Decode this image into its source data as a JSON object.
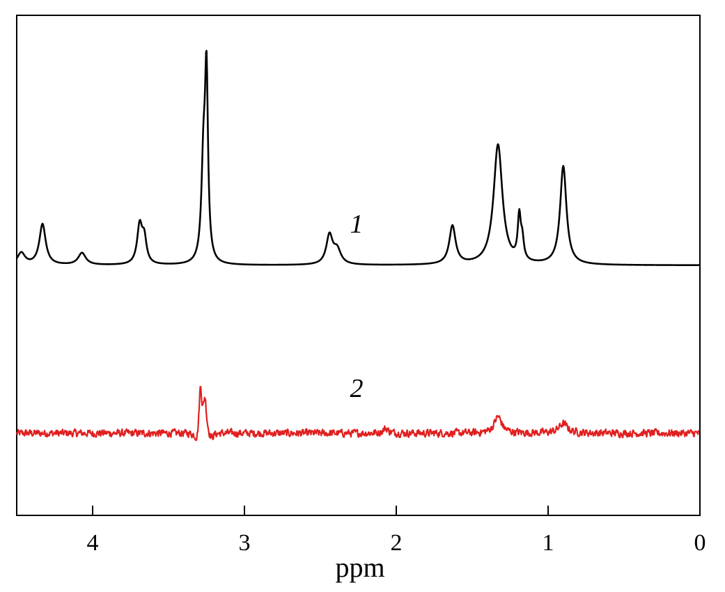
{
  "chart_data": {
    "type": "line",
    "title": "",
    "xlabel": "ppm",
    "ylabel": "",
    "xlim": [
      4.5,
      0
    ],
    "x_reversed": true,
    "grid": false,
    "x_ticks": [
      4,
      3,
      2,
      1,
      0
    ],
    "x_tick_labels": [
      "4",
      "3",
      "2",
      "1",
      "0"
    ],
    "series": [
      {
        "label": "1",
        "color": "#000000",
        "noise": 0,
        "baseline": 0,
        "peaks": [
          {
            "ppm": 4.47,
            "height": 0.05,
            "width": 0.03
          },
          {
            "ppm": 4.33,
            "height": 0.17,
            "width": 0.025
          },
          {
            "ppm": 4.07,
            "height": 0.05,
            "width": 0.03
          },
          {
            "ppm": 3.69,
            "height": 0.16,
            "width": 0.02
          },
          {
            "ppm": 3.66,
            "height": 0.1,
            "width": 0.018
          },
          {
            "ppm": 3.27,
            "height": 0.4,
            "width": 0.016
          },
          {
            "ppm": 3.25,
            "height": 0.74,
            "width": 0.012
          },
          {
            "ppm": 2.44,
            "height": 0.12,
            "width": 0.025
          },
          {
            "ppm": 2.39,
            "height": 0.06,
            "width": 0.03
          },
          {
            "ppm": 1.63,
            "height": 0.16,
            "width": 0.025
          },
          {
            "ppm": 1.33,
            "height": 0.5,
            "width": 0.035
          },
          {
            "ppm": 1.19,
            "height": 0.18,
            "width": 0.012
          },
          {
            "ppm": 1.17,
            "height": 0.08,
            "width": 0.012
          },
          {
            "ppm": 0.9,
            "height": 0.41,
            "width": 0.025
          }
        ]
      },
      {
        "label": "2",
        "color": "#e02020",
        "noise": 0.028,
        "baseline": 0,
        "peaks": [
          {
            "ppm": 3.29,
            "height": 0.42,
            "width": 0.012
          },
          {
            "ppm": 3.26,
            "height": 0.28,
            "width": 0.012
          },
          {
            "ppm": 3.31,
            "height": -0.12,
            "width": 0.02
          },
          {
            "ppm": 3.22,
            "height": -0.06,
            "width": 0.02
          },
          {
            "ppm": 1.33,
            "height": 0.14,
            "width": 0.03
          },
          {
            "ppm": 0.9,
            "height": 0.08,
            "width": 0.035
          },
          {
            "ppm": 2.07,
            "height": 0.04,
            "width": 0.02
          }
        ]
      }
    ]
  }
}
